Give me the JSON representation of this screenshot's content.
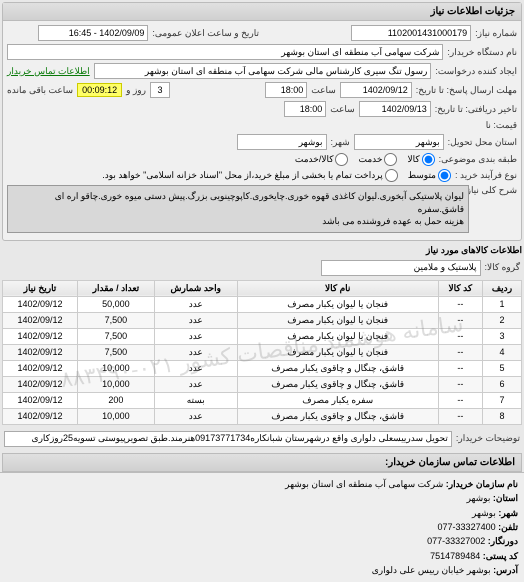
{
  "header": {
    "title": "جزئیات اطلاعات نیاز"
  },
  "need": {
    "number_label": "شماره نیاز:",
    "number": "1102001431000179",
    "announce_label": "تاریخ و ساعت اعلان عمومی:",
    "announce_date": "1402/09/09 - 16:45",
    "buyer_label": "نام دستگاه خریدار:",
    "buyer": "شرکت سهامی آب منطقه ای استان بوشهر",
    "applicant_label": "ایجاد کننده درخواست:",
    "applicant": "رسول تنگ سیری کارشناس مالی شرکت سهامی آب منطقه ای استان بوشهر",
    "contact_link": "اطلاعات تماس خریدار",
    "deadline_reply_label": "مهلت ارسال پاسخ: تا تاریخ:",
    "deadline_reply_date": "1402/09/12",
    "deadline_reply_time_label": "ساعت",
    "deadline_reply_time": "18:00",
    "deadline_valid_label": "تاخیر دریافتی: تا تاریخ:",
    "deadline_valid_date": "1402/09/13",
    "deadline_valid_time": "18:00",
    "countdown_days": "3",
    "countdown_days_label": "روز و",
    "countdown_time": "00:09:12",
    "countdown_suffix": "ساعت باقی مانده",
    "price_label": "قیمت: نا",
    "delivery_province_label": "استان محل تحویل:",
    "delivery_province": "بوشهر",
    "delivery_city_label": "شهر:",
    "delivery_city": "بوشهر",
    "packing_label": "طبقه بندی موضوعی:",
    "packing_opts": [
      "کالا",
      "خدمت",
      "کالا/خدمت"
    ],
    "packing_selected": 0,
    "process_label": "نوع فرآیند خرید :",
    "process_opts": [
      "متوسط",
      "پرداخت تمام یا بخشی از مبلغ خرید،از محل \"اسناد خزانه اسلامی\" خواهد بود."
    ],
    "process_selected": 0,
    "shared_key_label": "شرح کلی نیاز:",
    "shared_key_text": "لیوان پلاستیکی آبخوری.لیوان کاغذی قهوه خوری.چایخوری.کاپوچینویی بزرگ.پیش دستی میوه خوری.چاقو اره ای قاشق.سفره\nهزینه حمل به عهده فروشنده می باشد"
  },
  "goods": {
    "section_title": "اطلاعات کالاهای مورد نیاز",
    "group_label": "گروه کالا:",
    "group_value": "پلاستیک و ملامین",
    "columns": [
      "ردیف",
      "کد کالا",
      "نام کالا",
      "واحد شمارش",
      "تعداد / مقدار",
      "تاریخ نیاز"
    ],
    "rows": [
      [
        "1",
        "--",
        "فنجان یا لیوان یکبار مصرف",
        "عدد",
        "50,000",
        "1402/09/12"
      ],
      [
        "2",
        "--",
        "فنجان یا لیوان یکبار مصرف",
        "عدد",
        "7,500",
        "1402/09/12"
      ],
      [
        "3",
        "--",
        "فنجان یا لیوان یکبار مصرف",
        "عدد",
        "7,500",
        "1402/09/12"
      ],
      [
        "4",
        "--",
        "فنجان یا لیوان یکبار مصرف",
        "عدد",
        "7,500",
        "1402/09/12"
      ],
      [
        "5",
        "--",
        "قاشق، چنگال و چاقوی یکبار مصرف",
        "عدد",
        "10,000",
        "1402/09/12"
      ],
      [
        "6",
        "--",
        "قاشق، چنگال و چاقوی یکبار مصرف",
        "عدد",
        "10,000",
        "1402/09/12"
      ],
      [
        "7",
        "--",
        "سفره یکبار مصرف",
        "بسته",
        "200",
        "1402/09/12"
      ],
      [
        "8",
        "--",
        "قاشق، چنگال و چاقوی یکبار مصرف",
        "عدد",
        "10,000",
        "1402/09/12"
      ]
    ],
    "watermark": "سامانه هوشمند مناقصات کشور ۰۲۱-۸۸۳۴۹۰",
    "buyer_note_label": "توضیحات خریدار:",
    "buyer_note": "تحویل سدرییسعلی دلواری واقع درشهرستان شبانکاره09173771734هنرمند.طبق تصویرپیوستی تسویه25روزکاری"
  },
  "contact": {
    "header": "اطلاعات تماس سازمان خریدار:",
    "org_label": "نام سازمان خریدار:",
    "org": "شرکت سهامی آب منطقه ای استان بوشهر",
    "province_label": "استان:",
    "province": "بوشهر",
    "city_label": "شهر:",
    "city": "بوشهر",
    "phone_label": "تلفن:",
    "phone": "33327400-077",
    "fax_label": "دورنگار:",
    "fax": "33327002-077",
    "postal_label": "کد پستی:",
    "postal": "7514789484",
    "address_label": "آدرس:",
    "address": "بوشهر خیابان رییس علی دلواری"
  }
}
